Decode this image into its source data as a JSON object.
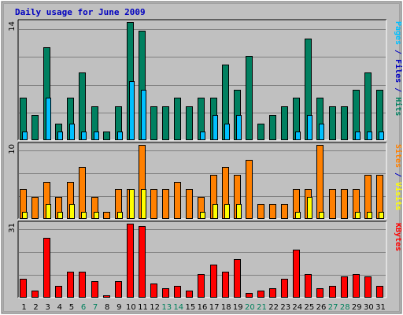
{
  "chart_data": {
    "type": "bar",
    "title": "Daily usage for June 2009",
    "days": [
      "1",
      "2",
      "3",
      "4",
      "5",
      "6",
      "7",
      "8",
      "9",
      "10",
      "11",
      "12",
      "13",
      "14",
      "15",
      "16",
      "17",
      "18",
      "19",
      "20",
      "21",
      "22",
      "23",
      "24",
      "25",
      "26",
      "27",
      "28",
      "29",
      "30",
      "31"
    ],
    "weekend_days": [
      "6",
      "7",
      "13",
      "14",
      "20",
      "21",
      "27",
      "28"
    ],
    "colors": {
      "background": "#c0c0c0",
      "pages": "#008060",
      "files": "#00c0ff",
      "hits": "#008060",
      "visits": "#ffff00",
      "sites": "#ff8000",
      "kbytes": "#ff0000",
      "weekday_label": "#000000",
      "weekend_label": "#00805c"
    },
    "panels": [
      {
        "id": "hits",
        "ymax_label": "14",
        "ymax": 14,
        "ylabel_parts": [
          {
            "text": "Pages",
            "color": "#00c0ff"
          },
          {
            "text": " / ",
            "color": "#0000c0"
          },
          {
            "text": "Files",
            "color": "#0000c0"
          },
          {
            "text": " / ",
            "color": "#0000c0"
          },
          {
            "text": "Hits",
            "color": "#008060"
          }
        ],
        "series": [
          {
            "name": "Hits",
            "color": "#008060",
            "values": [
              5,
              3,
              11,
              2,
              5,
              8,
              4,
              1,
              4,
              14,
              13,
              4,
              4,
              5,
              4,
              5,
              5,
              9,
              6,
              10,
              2,
              3,
              4,
              5,
              12,
              5,
              4,
              4,
              6,
              8,
              6
            ]
          },
          {
            "name": "Files",
            "color": "#00c0ff",
            "values": [
              1,
              0,
              5,
              1,
              2,
              1,
              1,
              0,
              1,
              7,
              6,
              0,
              0,
              0,
              0,
              1,
              3,
              2,
              3,
              0,
              0,
              0,
              0,
              1,
              3,
              2,
              0,
              0,
              1,
              1,
              1
            ]
          }
        ]
      },
      {
        "id": "visits",
        "ymax_label": "10",
        "ymax": 10,
        "ylabel_parts": [
          {
            "text": "Sites",
            "color": "#ff8000"
          },
          {
            "text": " / ",
            "color": "#0000c0"
          },
          {
            "text": "Visits",
            "color": "#ffff00"
          }
        ],
        "series": [
          {
            "name": "Sites",
            "color": "#ff8000",
            "values": [
              4,
              3,
              5,
              3,
              5,
              7,
              3,
              1,
              4,
              4,
              10,
              4,
              4,
              5,
              4,
              3,
              6,
              7,
              6,
              8,
              2,
              2,
              2,
              4,
              4,
              10,
              4,
              4,
              4,
              6,
              6
            ]
          },
          {
            "name": "Visits",
            "color": "#ffff00",
            "values": [
              1,
              0,
              2,
              1,
              2,
              1,
              1,
              0,
              1,
              4,
              4,
              0,
              0,
              0,
              0,
              1,
              2,
              2,
              2,
              0,
              0,
              0,
              0,
              1,
              3,
              1,
              0,
              0,
              1,
              1,
              1
            ]
          }
        ]
      },
      {
        "id": "kbytes",
        "ymax_label": "31",
        "ymax": 31,
        "ylabel_parts": [
          {
            "text": "KBytes",
            "color": "#ff0000"
          }
        ],
        "series": [
          {
            "name": "KBytes",
            "color": "#ff0000",
            "values": [
              8,
              3,
              25,
              5,
              11,
              11,
              7,
              1,
              7,
              31,
              30,
              6,
              4,
              5,
              3,
              10,
              14,
              11,
              16,
              2,
              3,
              4,
              8,
              20,
              10,
              4,
              5,
              9,
              10,
              9,
              5
            ]
          }
        ]
      }
    ]
  }
}
